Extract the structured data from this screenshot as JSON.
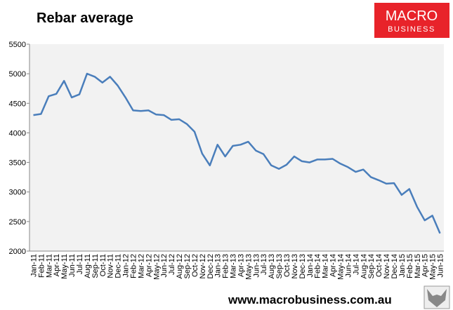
{
  "chart_data": {
    "type": "line",
    "title": "Rebar average",
    "logo": [
      "MACRO",
      "BUSINESS"
    ],
    "footer": "www.macrobusiness.com.au",
    "categories": [
      "Jan-11",
      "Feb-11",
      "Mar-11",
      "Apr-11",
      "May-11",
      "Jun-11",
      "Jul-11",
      "Aug-11",
      "Sep-11",
      "Oct-11",
      "Nov-11",
      "Dec-11",
      "Jan-12",
      "Feb-12",
      "Mar-12",
      "Apr-12",
      "May-12",
      "Jun-12",
      "Jul-12",
      "Aug-12",
      "Sep-12",
      "Oct-12",
      "Nov-12",
      "Dec-12",
      "Jan-13",
      "Feb-13",
      "Mar-13",
      "Apr-13",
      "May-13",
      "Jun-13",
      "Jul-13",
      "Aug-13",
      "Sep-13",
      "Oct-13",
      "Nov-13",
      "Dec-13",
      "Jan-14",
      "Feb-14",
      "Mar-14",
      "Apr-14",
      "May-14",
      "Jun-14",
      "Jul-14",
      "Aug-14",
      "Sep-14",
      "Oct-14",
      "Nov-14",
      "Dec-14",
      "Jan-15",
      "Feb-15",
      "Mar-15",
      "Apr-15",
      "May-15",
      "Jun-15"
    ],
    "values": [
      4300,
      4320,
      4620,
      4660,
      4880,
      4600,
      4650,
      5000,
      4950,
      4850,
      4950,
      4800,
      4600,
      4380,
      4370,
      4380,
      4310,
      4300,
      4220,
      4230,
      4150,
      4020,
      3650,
      3450,
      3800,
      3600,
      3780,
      3800,
      3850,
      3700,
      3640,
      3450,
      3390,
      3460,
      3600,
      3520,
      3500,
      3550,
      3550,
      3560,
      3480,
      3420,
      3340,
      3380,
      3250,
      3200,
      3140,
      3150,
      2950,
      3050,
      2750,
      2520,
      2600,
      2300
    ],
    "color": "#4a7ebb",
    "ylim": [
      2000,
      5500
    ],
    "yticks": [
      2000,
      2500,
      3000,
      3500,
      4000,
      4500,
      5000,
      5500
    ],
    "grid": false
  }
}
